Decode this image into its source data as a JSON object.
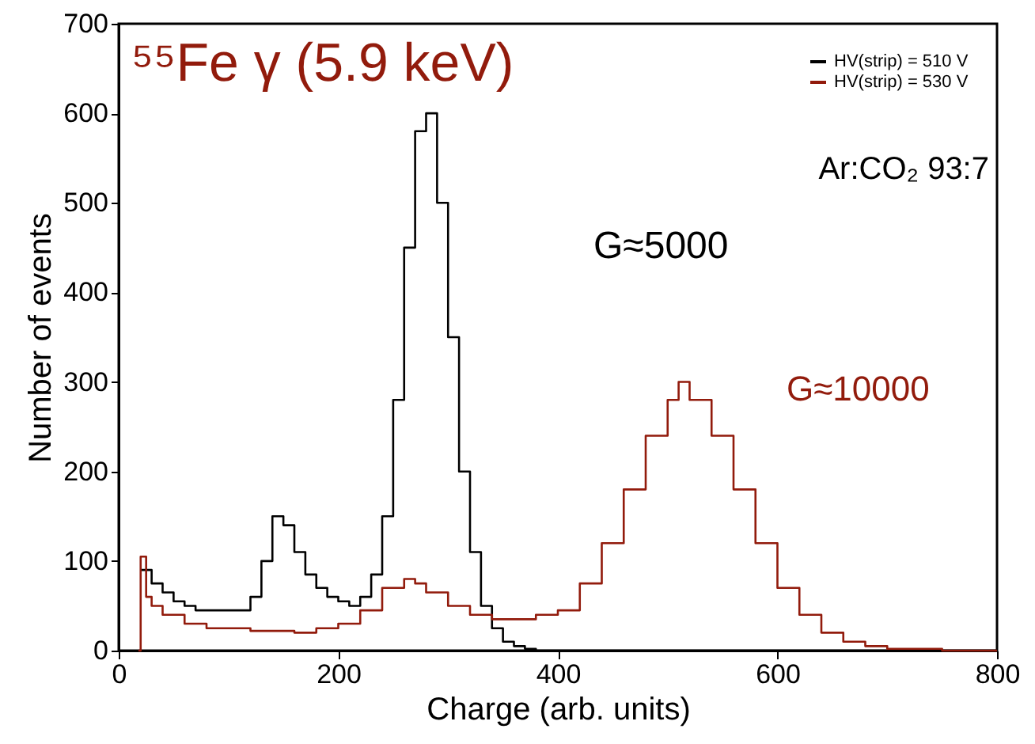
{
  "chart_data": {
    "type": "step",
    "xlabel": "Charge (arb. units)",
    "ylabel": "Number of events",
    "xlim": [
      0,
      800
    ],
    "xticks": [
      0,
      200,
      400,
      600,
      800
    ],
    "ylim": [
      0,
      700
    ],
    "yticks": [
      0,
      100,
      200,
      300,
      400,
      500,
      600,
      700
    ],
    "grid": false,
    "legend": "top right",
    "annotations": [
      "⁵⁵Fe γ (5.9 keV)",
      "G≈5000",
      "G≈10000",
      "Ar:CO₂ 93:7"
    ],
    "series": [
      {
        "name": "HV(strip) = 510 V",
        "color": "#000000",
        "x": [
          20,
          30,
          40,
          50,
          60,
          70,
          80,
          90,
          100,
          110,
          120,
          130,
          140,
          150,
          160,
          170,
          180,
          190,
          200,
          210,
          220,
          230,
          240,
          250,
          260,
          270,
          280,
          290,
          300,
          310,
          320,
          330,
          340,
          350,
          360,
          370,
          380,
          400,
          500,
          600,
          700,
          800
        ],
        "values": [
          90,
          75,
          65,
          55,
          50,
          45,
          45,
          45,
          45,
          45,
          60,
          100,
          150,
          140,
          110,
          85,
          70,
          60,
          55,
          50,
          60,
          85,
          150,
          280,
          450,
          580,
          600,
          500,
          350,
          200,
          110,
          50,
          25,
          10,
          5,
          2,
          0,
          0,
          0,
          0,
          0,
          0
        ]
      },
      {
        "name": "HV(strip) = 530 V",
        "color": "#921b0c",
        "x": [
          18,
          20,
          25,
          30,
          40,
          60,
          80,
          100,
          120,
          140,
          160,
          180,
          200,
          220,
          240,
          260,
          270,
          280,
          300,
          320,
          340,
          360,
          380,
          400,
          420,
          440,
          460,
          480,
          500,
          510,
          520,
          540,
          560,
          580,
          600,
          620,
          640,
          660,
          680,
          700,
          750,
          800
        ],
        "values": [
          0,
          105,
          60,
          50,
          40,
          30,
          25,
          25,
          22,
          22,
          20,
          25,
          30,
          45,
          70,
          80,
          75,
          65,
          50,
          40,
          35,
          35,
          40,
          45,
          75,
          120,
          180,
          240,
          280,
          300,
          280,
          240,
          180,
          120,
          70,
          40,
          20,
          10,
          5,
          2,
          0,
          0
        ]
      }
    ]
  }
}
